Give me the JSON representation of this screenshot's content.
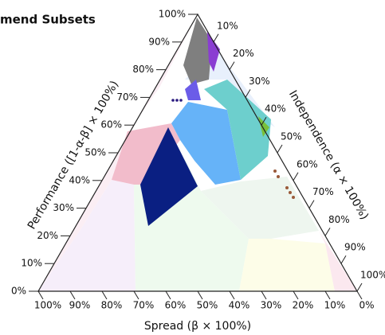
{
  "chart_data": {
    "type": "ternary",
    "title": "mend Subsets",
    "left_axis": {
      "label": "Performance ([1-α-β] × 100%)",
      "lim": [
        0,
        100
      ],
      "ticks": [
        {
          "value": 0,
          "label": "0%"
        },
        {
          "value": 10,
          "label": "10%"
        },
        {
          "value": 20,
          "label": "20%"
        },
        {
          "value": 30,
          "label": "30%"
        },
        {
          "value": 40,
          "label": "40%"
        },
        {
          "value": 50,
          "label": "50%"
        },
        {
          "value": 60,
          "label": "60%"
        },
        {
          "value": 70,
          "label": "70%"
        },
        {
          "value": 80,
          "label": "80%"
        },
        {
          "value": 90,
          "label": "90%"
        },
        {
          "value": 100,
          "label": "100%"
        }
      ]
    },
    "right_axis": {
      "label": "Independence (α × 100%)",
      "lim": [
        0,
        100
      ],
      "ticks": [
        {
          "value": 10,
          "label": "10%"
        },
        {
          "value": 20,
          "label": "20%"
        },
        {
          "value": 30,
          "label": "30%"
        },
        {
          "value": 40,
          "label": "40%"
        },
        {
          "value": 50,
          "label": "50%"
        },
        {
          "value": 60,
          "label": "60%"
        },
        {
          "value": 70,
          "label": "70%"
        },
        {
          "value": 80,
          "label": "80%"
        },
        {
          "value": 90,
          "label": "90%"
        },
        {
          "value": 100,
          "label": "100%"
        }
      ]
    },
    "bottom_axis": {
      "label": "Spread  (β × 100%)",
      "lim": [
        0,
        100
      ],
      "ticks": [
        {
          "value": 100,
          "label": "100%"
        },
        {
          "value": 90,
          "label": "90%"
        },
        {
          "value": 80,
          "label": "80%"
        },
        {
          "value": 70,
          "label": "70%"
        },
        {
          "value": 60,
          "label": "60%"
        },
        {
          "value": 50,
          "label": "50%"
        },
        {
          "value": 40,
          "label": "40%"
        },
        {
          "value": 30,
          "label": "30%"
        },
        {
          "value": 20,
          "label": "20%"
        },
        {
          "value": 10,
          "label": "10%"
        },
        {
          "value": 0,
          "label": "0%"
        }
      ]
    }
  }
}
